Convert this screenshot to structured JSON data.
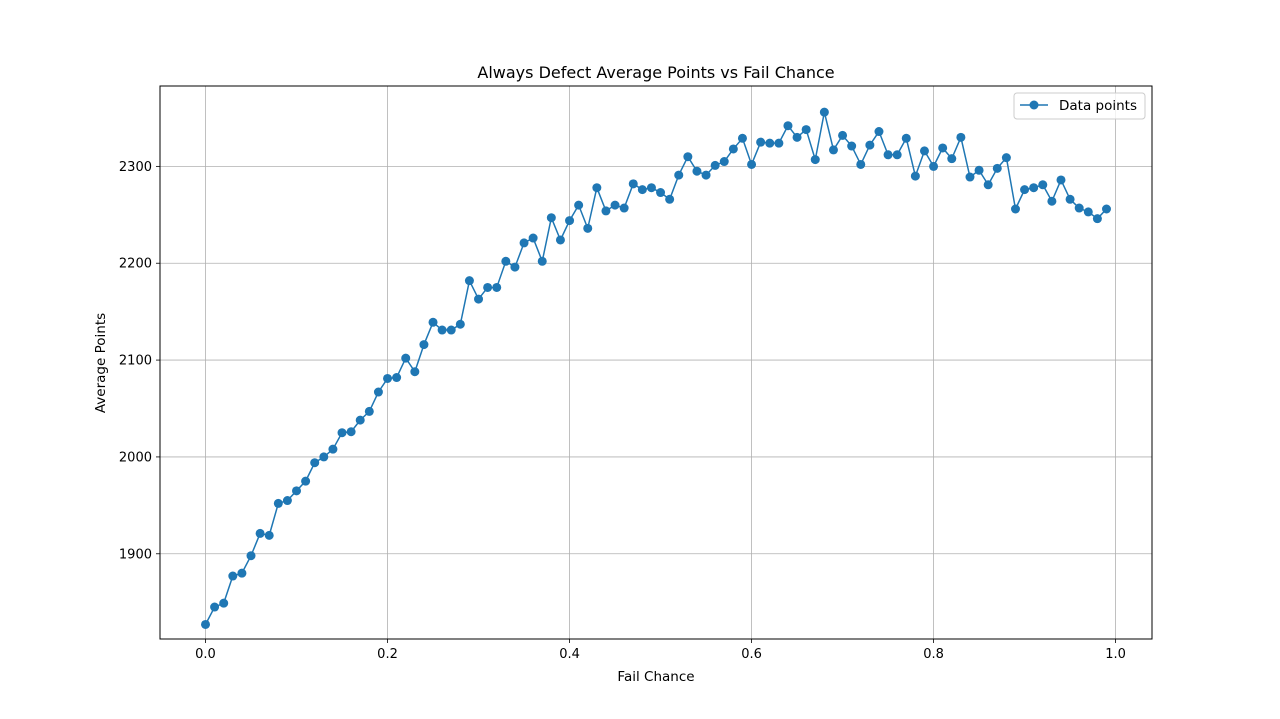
{
  "chart_data": {
    "type": "line",
    "title": "Always Defect Average Points vs Fail Chance",
    "xlabel": "Fail Chance",
    "ylabel": "Average Points",
    "xlim": [
      -0.05,
      1.04
    ],
    "ylim": [
      1812,
      2383
    ],
    "x_ticks": [
      0.0,
      0.2,
      0.4,
      0.6,
      0.8,
      1.0
    ],
    "x_tick_labels": [
      "0.0",
      "0.2",
      "0.4",
      "0.6",
      "0.8",
      "1.0"
    ],
    "y_ticks": [
      1900,
      2000,
      2100,
      2200,
      2300
    ],
    "y_tick_labels": [
      "1900",
      "2000",
      "2100",
      "2200",
      "2300"
    ],
    "grid": true,
    "legend_position": "top-right",
    "color": "#1f77b4",
    "series": [
      {
        "name": "Data points",
        "marker": "circle",
        "x": [
          0.0,
          0.01,
          0.02,
          0.03,
          0.04,
          0.05,
          0.06,
          0.07,
          0.08,
          0.09,
          0.1,
          0.11,
          0.12,
          0.13,
          0.14,
          0.15,
          0.16,
          0.17,
          0.18,
          0.19,
          0.2,
          0.21,
          0.22,
          0.23,
          0.24,
          0.25,
          0.26,
          0.27,
          0.28,
          0.29,
          0.3,
          0.31,
          0.32,
          0.33,
          0.34,
          0.35,
          0.36,
          0.37,
          0.38,
          0.39,
          0.4,
          0.41,
          0.42,
          0.43,
          0.44,
          0.45,
          0.46,
          0.47,
          0.48,
          0.49,
          0.5,
          0.51,
          0.52,
          0.53,
          0.54,
          0.55,
          0.56,
          0.57,
          0.58,
          0.59,
          0.6,
          0.61,
          0.62,
          0.63,
          0.64,
          0.65,
          0.66,
          0.67,
          0.68,
          0.69,
          0.7,
          0.71,
          0.72,
          0.73,
          0.74,
          0.75,
          0.76,
          0.77,
          0.78,
          0.79,
          0.8,
          0.81,
          0.82,
          0.83,
          0.84,
          0.85,
          0.86,
          0.87,
          0.88,
          0.89,
          0.9,
          0.91,
          0.92,
          0.93,
          0.94,
          0.95,
          0.96,
          0.97,
          0.98,
          0.99
        ],
        "y": [
          1827,
          1845,
          1849,
          1877,
          1880,
          1898,
          1921,
          1919,
          1952,
          1955,
          1965,
          1975,
          1994,
          2000,
          2008,
          2025,
          2026,
          2038,
          2047,
          2067,
          2081,
          2082,
          2102,
          2088,
          2116,
          2139,
          2131,
          2131,
          2137,
          2182,
          2163,
          2175,
          2175,
          2202,
          2196,
          2221,
          2226,
          2202,
          2247,
          2224,
          2244,
          2260,
          2236,
          2278,
          2254,
          2260,
          2257,
          2282,
          2276,
          2278,
          2273,
          2266,
          2291,
          2310,
          2295,
          2291,
          2301,
          2305,
          2318,
          2329,
          2302,
          2325,
          2324,
          2324,
          2342,
          2330,
          2338,
          2307,
          2356,
          2317,
          2332,
          2321,
          2302,
          2322,
          2336,
          2312,
          2312,
          2329,
          2290,
          2316,
          2300,
          2319,
          2308,
          2330,
          2289,
          2296,
          2281,
          2298,
          2309,
          2256,
          2276,
          2278,
          2281,
          2264,
          2286,
          2266,
          2257,
          2253,
          2246,
          2256
        ]
      }
    ]
  }
}
